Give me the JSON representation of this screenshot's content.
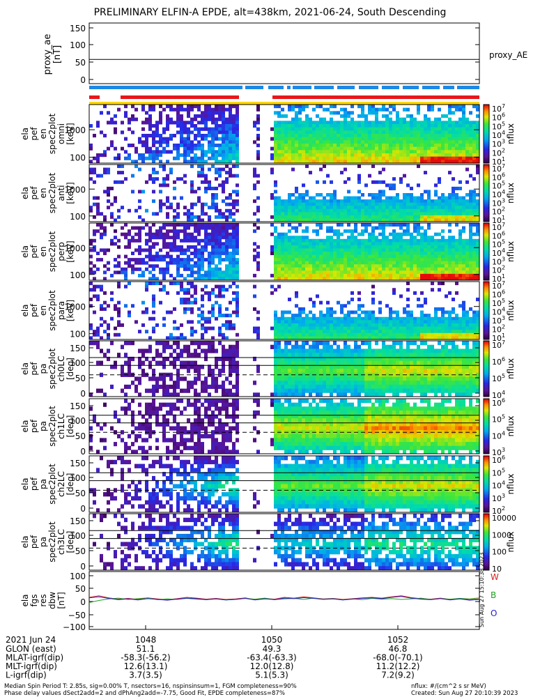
{
  "title": "PRELIMINARY ELFIN-A EPDE, alt=438km, 2021-06-24, South Descending",
  "colors": {
    "red_bar": "#e8161b",
    "blue_bar": "#1e88e5",
    "yellow_bar": "#ffd500",
    "line_w": "#d62020",
    "line_b": "#20a020",
    "line_o": "#2020d0"
  },
  "chart_data": [
    {
      "type": "line",
      "panel": "proxy_ae",
      "ylabel_lines": [
        "proxy_ae",
        "[nT]"
      ],
      "yticks": [
        "150",
        "100",
        "50",
        "0"
      ],
      "ylim": [
        -15,
        160
      ],
      "series": [
        {
          "name": "proxy_AE",
          "values": [
            55,
            55
          ]
        }
      ]
    },
    {
      "type": "heatmap",
      "panel": "spec2plot omni",
      "ylabel_lines": [
        "ela",
        "pef",
        "en",
        "spec2plot",
        "omni",
        "[keV]"
      ],
      "yticks": [
        "1000",
        "100"
      ],
      "colorbar_ticks": [
        "10^7",
        "10^6",
        "10^5",
        "10^4",
        "10^3",
        "10^2",
        "10^1"
      ],
      "colorbar_label": "nflux"
    },
    {
      "type": "heatmap",
      "panel": "spec2plot anti",
      "ylabel_lines": [
        "ela",
        "pef",
        "en",
        "spec2plot",
        "anti",
        "[keV]"
      ],
      "yticks": [
        "1000",
        "100"
      ],
      "colorbar_ticks": [
        "10^7",
        "10^6",
        "10^5",
        "10^4",
        "10^3",
        "10^2",
        "10^1"
      ],
      "colorbar_label": "nflux"
    },
    {
      "type": "heatmap",
      "panel": "spec2plot perp",
      "ylabel_lines": [
        "ela",
        "pef",
        "en",
        "spec2plot",
        "perp",
        "[keV]"
      ],
      "yticks": [
        "1000",
        "100"
      ],
      "colorbar_ticks": [
        "10^7",
        "10^6",
        "10^5",
        "10^4",
        "10^3",
        "10^2",
        "10^1"
      ],
      "colorbar_label": "nflux"
    },
    {
      "type": "heatmap",
      "panel": "spec2plot para",
      "ylabel_lines": [
        "ela",
        "pef",
        "en",
        "spec2plot",
        "para",
        "[keV]"
      ],
      "yticks": [
        "1000",
        "100"
      ],
      "colorbar_ticks": [
        "10^7",
        "10^6",
        "10^5",
        "10^4",
        "10^3",
        "10^2",
        "10^1"
      ],
      "colorbar_label": "nflux"
    },
    {
      "type": "heatmap",
      "panel": "spec2plot ch0LC",
      "ylabel_lines": [
        "ela",
        "pef",
        "pa",
        "spec2plot",
        "ch0LC",
        "[deg]"
      ],
      "yticks": [
        "150",
        "100",
        "50",
        "0"
      ],
      "colorbar_ticks": [
        "10^7",
        "10^6",
        "10^5",
        "10^4"
      ],
      "colorbar_label": "nflux"
    },
    {
      "type": "heatmap",
      "panel": "spec2plot ch1LC",
      "ylabel_lines": [
        "ela",
        "pef",
        "pa",
        "spec2plot",
        "ch1LC",
        "[deg]"
      ],
      "yticks": [
        "150",
        "100",
        "50",
        "0"
      ],
      "colorbar_ticks": [
        "10^6",
        "10^5",
        "10^4",
        "10^3"
      ],
      "colorbar_label": "nflux"
    },
    {
      "type": "heatmap",
      "panel": "spec2plot ch2LC",
      "ylabel_lines": [
        "ela",
        "pef",
        "pa",
        "spec2plot",
        "ch2LC",
        "[deg]"
      ],
      "yticks": [
        "150",
        "100",
        "50",
        "0"
      ],
      "colorbar_ticks": [
        "10^6",
        "10^5",
        "10^4",
        "10^3",
        "10^2"
      ],
      "colorbar_label": "nflux"
    },
    {
      "type": "heatmap",
      "panel": "spec2plot ch3LC",
      "ylabel_lines": [
        "ela",
        "pef",
        "pa",
        "spec2plot",
        "ch3LC",
        "[deg]"
      ],
      "yticks": [
        "150",
        "100",
        "50",
        "0"
      ],
      "colorbar_ticks": [
        "10000",
        "1000",
        "100",
        "10"
      ],
      "colorbar_label": "nflux"
    },
    {
      "type": "line",
      "panel": "fgs res dbw",
      "ylabel_lines": [
        "ela",
        "fgs",
        "res",
        "dbw",
        "[nT]"
      ],
      "yticks": [
        "100",
        "50",
        "0",
        "−50",
        "−100"
      ],
      "ylim": [
        -110,
        110
      ],
      "series": [
        {
          "name": "W",
          "values": [
            12,
            18,
            10,
            5,
            8,
            4,
            10,
            6,
            3,
            7,
            12,
            9,
            5,
            8,
            4,
            6,
            10,
            3,
            8,
            5,
            12,
            9,
            14,
            10,
            6,
            8,
            4,
            7,
            10,
            12,
            9,
            14,
            18,
            11,
            7,
            5,
            9,
            4,
            8,
            3,
            6
          ]
        },
        {
          "name": "B",
          "values": [
            -8,
            0,
            6,
            9,
            4,
            7,
            10,
            3,
            6,
            4,
            8,
            5,
            3,
            6,
            2,
            4,
            8,
            5,
            9,
            3,
            6,
            8,
            4,
            9,
            5,
            7,
            2,
            6,
            3,
            8,
            5,
            7,
            4,
            6,
            9,
            4,
            7,
            5,
            8,
            6,
            10
          ]
        },
        {
          "name": "O",
          "values": [
            10,
            14,
            8,
            3,
            6,
            2,
            7,
            4,
            1,
            5,
            9,
            7,
            3,
            6,
            2,
            4,
            8,
            2,
            6,
            3,
            9,
            7,
            11,
            8,
            4,
            6,
            2,
            5,
            8,
            10,
            7,
            12,
            15,
            9,
            5,
            3,
            7,
            2,
            6,
            1,
            4
          ]
        }
      ]
    }
  ],
  "legend_letters": [
    "W",
    "B",
    "O"
  ],
  "right_label": "proxy_AE",
  "x_ticks": [
    "1048",
    "1050",
    "1052"
  ],
  "ephemeris": {
    "date": "2021 Jun 24",
    "rows": [
      {
        "label": "GLON (east)",
        "values": [
          "51.1",
          "49.3",
          "46.8"
        ]
      },
      {
        "label": "MLAT-igrf(dip)",
        "values": [
          "-58.3(-56.2)",
          "-63.4(-63.3)",
          "-68.0(-70.1)"
        ]
      },
      {
        "label": "MLT-igrf(dip)",
        "values": [
          "12.6(13.1)",
          "12.0(12.8)",
          "11.2(12.2)"
        ]
      },
      {
        "label": "L-igrf(dip)",
        "values": [
          "3.7(3.5)",
          "5.1(5.3)",
          "7.2(9.2)"
        ]
      }
    ]
  },
  "side_note": "Sun Aug 27 15:10:38 2023",
  "footer": {
    "line1_left": "Median Spin Period T: 2.85s, sig=0.00% T, nsectors=16, nspinsinsum=1, FGM completeness=90%",
    "line2_left": "Phase delay values dSect2add=2 and dPhAng2add=-7.75, Good Fit, EPDE completeness=87%",
    "line1_right": "nflux: #/(cm^2 s sr MeV)",
    "line2_right": "Created: Sun Aug 27 20:10:39 2023"
  }
}
